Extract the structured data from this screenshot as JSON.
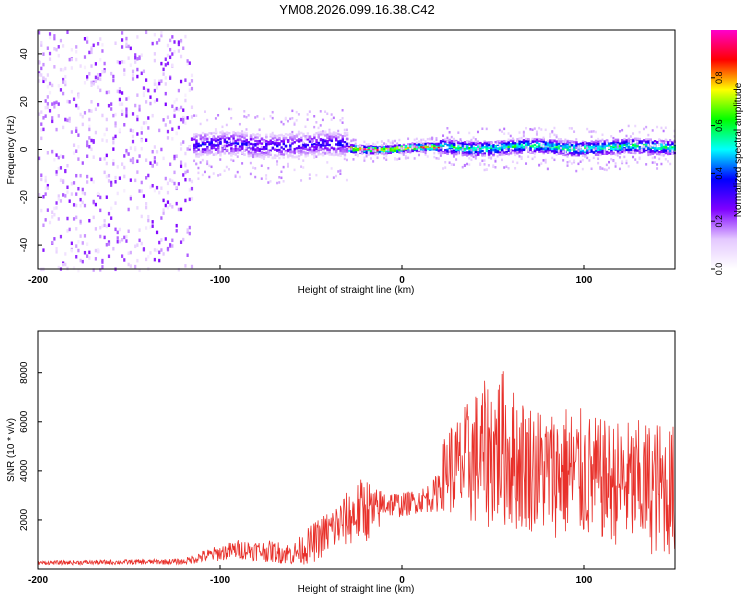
{
  "title": "YM08.2026.099.16.38.C42",
  "chart_data": [
    {
      "type": "heatmap",
      "xlabel": "Height of straight line (km)",
      "ylabel": "Frequency (Hz)",
      "xlim": [
        -200,
        150
      ],
      "ylim": [
        -50,
        50
      ],
      "x_ticks": [
        -200,
        -100,
        0,
        100
      ],
      "y_ticks": [
        -40,
        -20,
        0,
        20,
        40
      ],
      "colorbar": {
        "label": "Normalized spectral amplitude",
        "range": [
          0,
          1
        ],
        "ticks": [
          "0.0",
          "0.2",
          "0.4",
          "0.6",
          "0.8"
        ],
        "colors": [
          "#ffffff",
          "#e4c8ff",
          "#7f00ff",
          "#0000ff",
          "#00ffff",
          "#00ff00",
          "#ffff00",
          "#ff0000",
          "#ff00cc"
        ]
      },
      "regions": [
        {
          "x_range": [
            -200,
            -115
          ],
          "freq_spread": 50,
          "amplitude": 0.18,
          "description_free": true
        },
        {
          "x_range": [
            -115,
            -30
          ],
          "center_freq": 2,
          "freq_spread": 5,
          "amplitude": 0.35
        },
        {
          "x_range": [
            -30,
            20
          ],
          "center_freq": 0.5,
          "freq_spread": 1.5,
          "amplitude": 0.9
        },
        {
          "x_range": [
            20,
            150
          ],
          "center_freq": 1,
          "freq_spread": 3,
          "amplitude": 0.6
        }
      ]
    },
    {
      "type": "line",
      "xlabel": "Height of straight line (km)",
      "ylabel": "SNR (10 * v/v)",
      "xlim": [
        -200,
        150
      ],
      "ylim": [
        0,
        9700
      ],
      "x_ticks": [
        -200,
        -100,
        0,
        100
      ],
      "y_ticks": [
        2000,
        4000,
        6000,
        8000
      ],
      "color": "#e8302a",
      "envelope": {
        "x": [
          -200,
          -120,
          -110,
          -90,
          -70,
          -60,
          -50,
          -35,
          -20,
          -15,
          -10,
          0,
          10,
          18,
          25,
          30,
          40,
          50,
          55,
          60,
          70,
          80,
          90,
          100,
          110,
          120,
          130,
          140,
          150
        ],
        "mean": [
          250,
          300,
          500,
          800,
          700,
          600,
          1000,
          1800,
          2500,
          2200,
          2700,
          2600,
          2800,
          3000,
          4200,
          4000,
          4500,
          4800,
          5000,
          4500,
          4200,
          3900,
          4000,
          3800,
          3600,
          3500,
          3400,
          3300,
          3200
        ],
        "amplitude": [
          80,
          120,
          250,
          400,
          450,
          450,
          800,
          1000,
          1400,
          1100,
          600,
          500,
          500,
          700,
          1800,
          2200,
          2800,
          3200,
          3300,
          3000,
          2700,
          2600,
          2800,
          2700,
          2500,
          2600,
          2700,
          2800,
          2700
        ]
      }
    }
  ]
}
